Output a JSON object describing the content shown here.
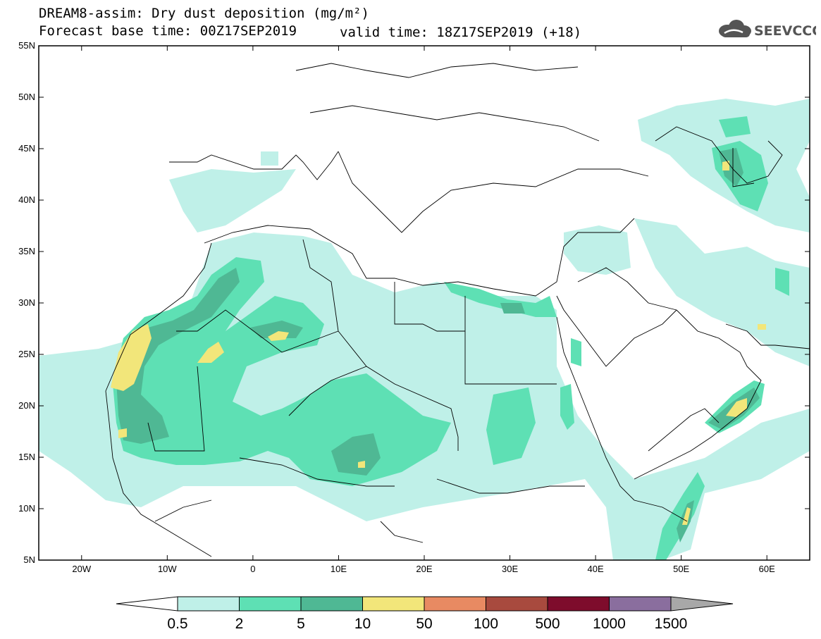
{
  "title": {
    "line1": "DREAM8-assim: Dry dust deposition (mg/m²)",
    "line2": "Forecast base time: 00Z17SEP2019",
    "valid": "valid time: 18Z17SEP2019 (+18)"
  },
  "logo": {
    "text": "SEEVCCC",
    "icon": "cloud-icon",
    "color": "#555555"
  },
  "map": {
    "region": "North Africa, Middle East and Mediterranean",
    "lat_labels": [
      "55N",
      "50N",
      "45N",
      "40N",
      "35N",
      "30N",
      "25N",
      "20N",
      "15N",
      "10N",
      "5N"
    ],
    "lon_labels": [
      "20W",
      "10W",
      "0",
      "10E",
      "20E",
      "30E",
      "40E",
      "50E",
      "60E"
    ],
    "lat_range": [
      5,
      55
    ],
    "lon_range": [
      -25,
      65
    ],
    "background_color": "#ffffff"
  },
  "colorbar": {
    "labels": [
      "0.5",
      "2",
      "5",
      "10",
      "50",
      "100",
      "500",
      "1000",
      "1500"
    ],
    "colors": [
      "#bff0e8",
      "#5ee0b4",
      "#4fb894",
      "#f2e67a",
      "#e88a62",
      "#a84a3e",
      "#7e0c2c",
      "#8a6e9e"
    ],
    "under_color": "#ffffff",
    "over_color": "#a8a8a8"
  }
}
